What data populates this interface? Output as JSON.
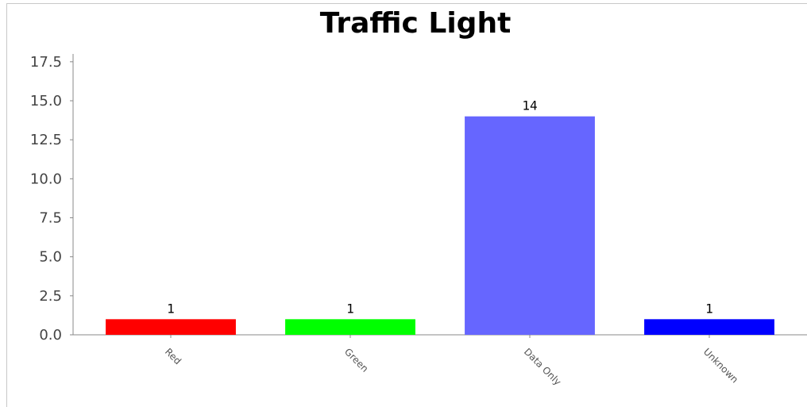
{
  "chart_data": {
    "type": "bar",
    "title": "Traffic Light",
    "xlabel": "",
    "ylabel": "",
    "categories": [
      "Red",
      "Green",
      "Data Only",
      "Unknown"
    ],
    "values": [
      1,
      1,
      14,
      1
    ],
    "value_labels": [
      "1",
      "1",
      "14",
      "1"
    ],
    "colors": [
      "#ff0000",
      "#00ff00",
      "#6666ff",
      "#0000ff"
    ],
    "ylim": [
      0,
      18
    ],
    "yticks": [
      0.0,
      2.5,
      5.0,
      7.5,
      10.0,
      12.5,
      15.0,
      17.5
    ],
    "ytick_labels": [
      "0.0",
      "2.5",
      "5.0",
      "7.5",
      "10.0",
      "12.5",
      "15.0",
      "17.5"
    ],
    "grid": false,
    "legend": "none"
  }
}
